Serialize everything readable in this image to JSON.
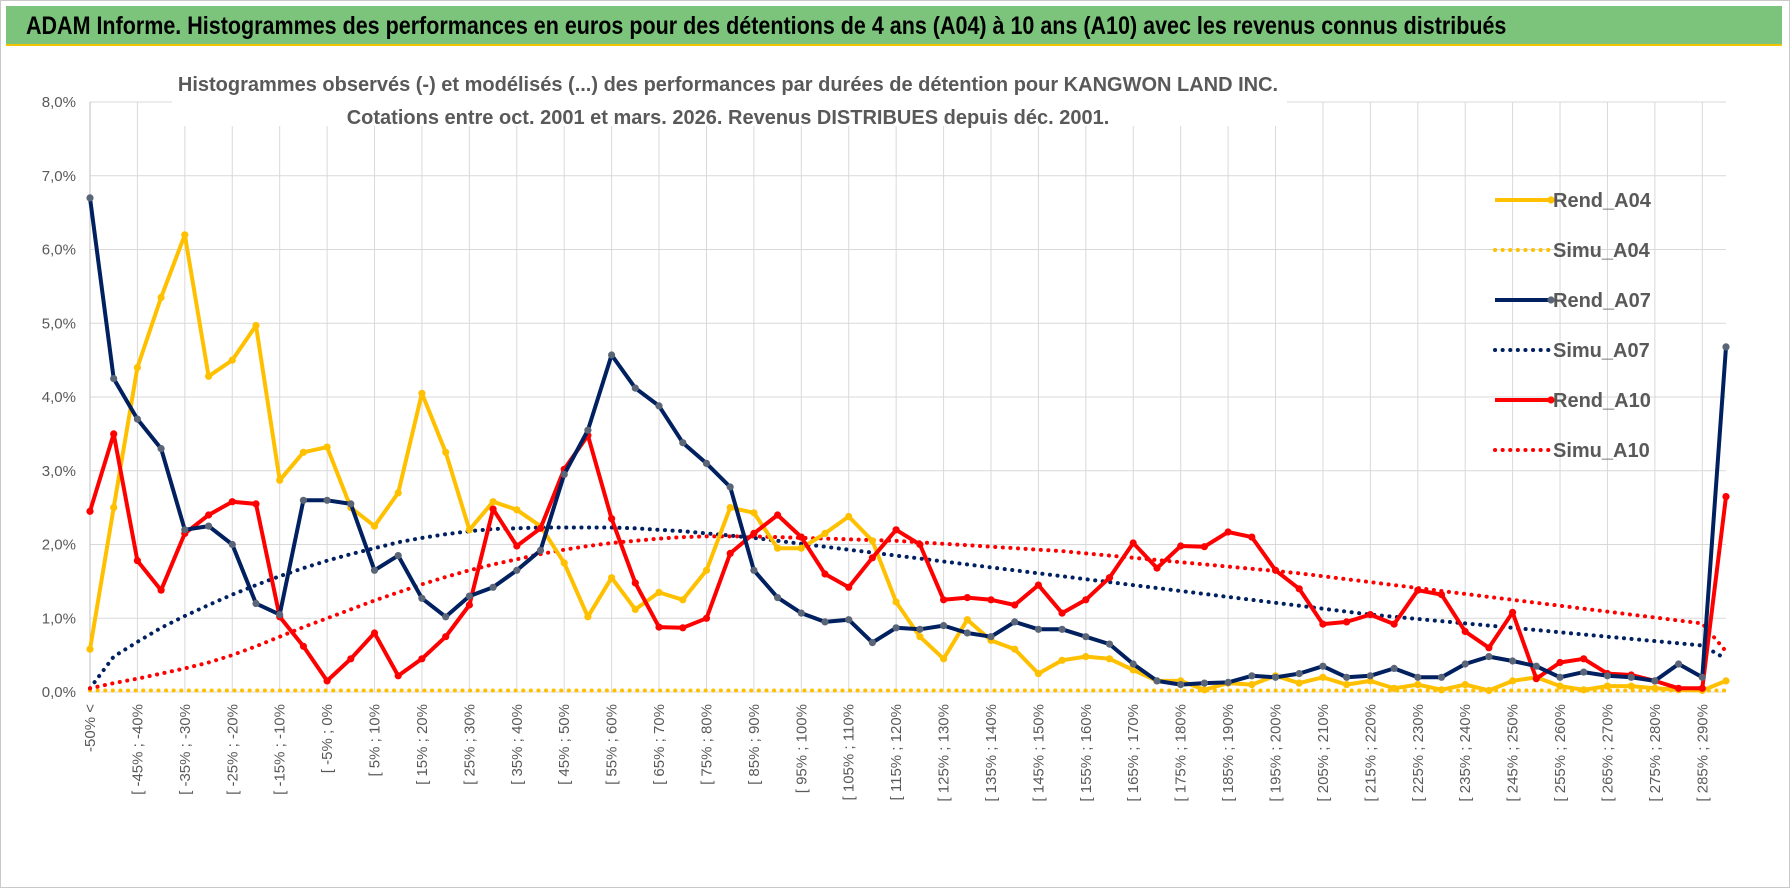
{
  "banner": {
    "title": "ADAM Informe. Histogrammes des performances en euros pour des détentions de 4 ans (A04) à 10 ans (A10) avec les revenus connus distribués"
  },
  "colors": {
    "banner_bg": "#7cc47c",
    "banner_accent": "#f3c300",
    "A04": "#ffc000",
    "A07": "#002060",
    "A10": "#ff0000",
    "A07_marker": "#5a6577"
  },
  "chart_data": {
    "type": "line",
    "title_line1": "Histogrammes observés (-) et modélisés (...) des performances par durées de détention pour KANGWON LAND INC.",
    "title_line2": "Cotations entre oct. 2001 et mars. 2026. Revenus DISTRIBUES depuis déc. 2001.",
    "ylim": [
      0,
      8
    ],
    "y_ticks": [
      "0,0%",
      "1,0%",
      "2,0%",
      "3,0%",
      "4,0%",
      "5,0%",
      "6,0%",
      "7,0%",
      "8,0%"
    ],
    "x_labels": [
      "-50% <",
      "[ -45% ; -40%",
      "[ -35% ; -30%",
      "[ -25% ; -20%",
      "[ -15% ; -10%",
      "[ -5% ; 0%",
      "[ 5% ; 10%",
      "[ 15% ; 20%",
      "[ 25% ; 30%",
      "[ 35% ; 40%",
      "[ 45% ; 50%",
      "[ 55% ; 60%",
      "[ 65% ; 70%",
      "[ 75% ; 80%",
      "[ 85% ; 90%",
      "[ 95% ; 100%",
      "[ 105% ; 110%",
      "[ 115% ; 120%",
      "[ 125% ; 130%",
      "[ 135% ; 140%",
      "[ 145% ; 150%",
      "[ 155% ; 160%",
      "[ 165% ; 170%",
      "[ 175% ; 180%",
      "[ 185% ; 190%",
      "[ 195% ; 200%",
      "[ 205% ; 210%",
      "[ 215% ; 220%",
      "[ 225% ; 230%",
      "[ 235% ; 240%",
      "[ 245% ; 250%",
      "[ 255% ; 260%",
      "[ 265% ; 270%",
      "[ 275% ; 280%",
      "[ 285% ; 290%"
    ],
    "n_points": 70,
    "series": [
      {
        "name": "Rend_A04",
        "style": "solid",
        "color": "#ffc000",
        "values": [
          0.58,
          2.5,
          4.4,
          5.35,
          6.2,
          4.28,
          4.5,
          4.97,
          2.87,
          3.25,
          3.32,
          2.5,
          2.25,
          2.7,
          4.05,
          3.25,
          2.2,
          2.58,
          2.47,
          2.25,
          1.75,
          1.02,
          1.55,
          1.12,
          1.35,
          1.25,
          1.65,
          2.5,
          2.43,
          1.95,
          1.95,
          2.15,
          2.38,
          2.05,
          1.22,
          0.75,
          0.45,
          0.98,
          0.7,
          0.58,
          0.25,
          0.43,
          0.48,
          0.45,
          0.3,
          0.15,
          0.15,
          0.03,
          0.12,
          0.1,
          0.22,
          0.12,
          0.2,
          0.1,
          0.15,
          0.05,
          0.1,
          0.03,
          0.1,
          0.02,
          0.15,
          0.2,
          0.08,
          0.03,
          0.08,
          0.08,
          0.05,
          0.03,
          0.02,
          0.15
        ]
      },
      {
        "name": "Simu_A04",
        "style": "dotted",
        "color": "#ffc000",
        "values": [
          0.02,
          0.02,
          0.02,
          0.02,
          0.02,
          0.02,
          0.02,
          0.02,
          0.02,
          0.02,
          0.02,
          0.02,
          0.02,
          0.02,
          0.02,
          0.02,
          0.02,
          0.02,
          0.02,
          0.02,
          0.02,
          0.02,
          0.02,
          0.02,
          0.02,
          0.02,
          0.02,
          0.02,
          0.02,
          0.02,
          0.02,
          0.02,
          0.02,
          0.02,
          0.02,
          0.02,
          0.02,
          0.02,
          0.02,
          0.02,
          0.02,
          0.02,
          0.02,
          0.02,
          0.02,
          0.02,
          0.02,
          0.02,
          0.02,
          0.02,
          0.02,
          0.02,
          0.02,
          0.02,
          0.02,
          0.02,
          0.02,
          0.02,
          0.02,
          0.02,
          0.02,
          0.02,
          0.02,
          0.02,
          0.02,
          0.02,
          0.02,
          0.02,
          0.02,
          0.02
        ]
      },
      {
        "name": "Rend_A07",
        "style": "solid",
        "color": "#002060",
        "values": [
          6.7,
          4.25,
          3.7,
          3.3,
          2.2,
          2.25,
          2.0,
          1.2,
          1.05,
          2.6,
          2.6,
          2.55,
          1.65,
          1.85,
          1.27,
          1.02,
          1.3,
          1.42,
          1.65,
          1.92,
          2.95,
          3.55,
          4.57,
          4.12,
          3.88,
          3.38,
          3.1,
          2.78,
          1.65,
          1.28,
          1.07,
          0.95,
          0.98,
          0.67,
          0.87,
          0.85,
          0.9,
          0.8,
          0.75,
          0.95,
          0.85,
          0.85,
          0.75,
          0.65,
          0.38,
          0.15,
          0.1,
          0.12,
          0.13,
          0.22,
          0.2,
          0.25,
          0.35,
          0.2,
          0.22,
          0.32,
          0.2,
          0.2,
          0.38,
          0.48,
          0.42,
          0.35,
          0.2,
          0.27,
          0.22,
          0.2,
          0.15,
          0.38,
          0.2,
          4.68
        ]
      },
      {
        "name": "Simu_A07",
        "style": "dotted",
        "color": "#002060",
        "values": [
          0.05,
          0.48,
          0.68,
          0.87,
          1.03,
          1.18,
          1.32,
          1.45,
          1.57,
          1.68,
          1.78,
          1.87,
          1.95,
          2.03,
          2.09,
          2.14,
          2.18,
          2.21,
          2.22,
          2.23,
          2.23,
          2.23,
          2.23,
          2.22,
          2.2,
          2.18,
          2.15,
          2.12,
          2.09,
          2.05,
          2.01,
          1.97,
          1.93,
          1.89,
          1.85,
          1.81,
          1.77,
          1.73,
          1.69,
          1.65,
          1.61,
          1.57,
          1.53,
          1.49,
          1.45,
          1.41,
          1.37,
          1.33,
          1.29,
          1.25,
          1.21,
          1.17,
          1.13,
          1.09,
          1.05,
          1.02,
          0.99,
          0.96,
          0.93,
          0.9,
          0.87,
          0.84,
          0.81,
          0.78,
          0.75,
          0.72,
          0.69,
          0.66,
          0.63,
          0.45
        ]
      },
      {
        "name": "Rend_A10",
        "style": "solid",
        "color": "#ff0000",
        "values": [
          2.45,
          3.5,
          1.78,
          1.38,
          2.15,
          2.4,
          2.58,
          2.55,
          1.02,
          0.62,
          0.15,
          0.45,
          0.8,
          0.22,
          0.45,
          0.75,
          1.18,
          2.48,
          1.98,
          2.22,
          3.02,
          3.48,
          2.35,
          1.48,
          0.88,
          0.87,
          1.0,
          1.88,
          2.15,
          2.4,
          2.1,
          1.6,
          1.42,
          1.82,
          2.2,
          2.0,
          1.25,
          1.28,
          1.25,
          1.18,
          1.45,
          1.07,
          1.25,
          1.55,
          2.02,
          1.68,
          1.98,
          1.97,
          2.17,
          2.1,
          1.65,
          1.4,
          0.92,
          0.95,
          1.05,
          0.92,
          1.38,
          1.32,
          0.82,
          0.6,
          1.08,
          0.18,
          0.4,
          0.45,
          0.25,
          0.23,
          0.15,
          0.05,
          0.05,
          2.65
        ]
      },
      {
        "name": "Simu_A10",
        "style": "dotted",
        "color": "#ff0000",
        "values": [
          0.05,
          0.12,
          0.18,
          0.25,
          0.32,
          0.4,
          0.5,
          0.62,
          0.75,
          0.88,
          1.0,
          1.12,
          1.24,
          1.35,
          1.46,
          1.56,
          1.65,
          1.73,
          1.8,
          1.87,
          1.93,
          1.98,
          2.02,
          2.05,
          2.08,
          2.1,
          2.11,
          2.11,
          2.11,
          2.1,
          2.09,
          2.08,
          2.07,
          2.06,
          2.05,
          2.03,
          2.01,
          1.99,
          1.97,
          1.95,
          1.93,
          1.91,
          1.88,
          1.85,
          1.82,
          1.79,
          1.76,
          1.73,
          1.7,
          1.67,
          1.64,
          1.61,
          1.57,
          1.53,
          1.49,
          1.45,
          1.41,
          1.37,
          1.33,
          1.29,
          1.25,
          1.21,
          1.17,
          1.13,
          1.09,
          1.05,
          1.01,
          0.97,
          0.93,
          0.55
        ]
      }
    ],
    "legend": {
      "position": "right",
      "entries": [
        "Rend_A04",
        "Simu_A04",
        "Rend_A07",
        "Simu_A07",
        "Rend_A10",
        "Simu_A10"
      ]
    }
  }
}
